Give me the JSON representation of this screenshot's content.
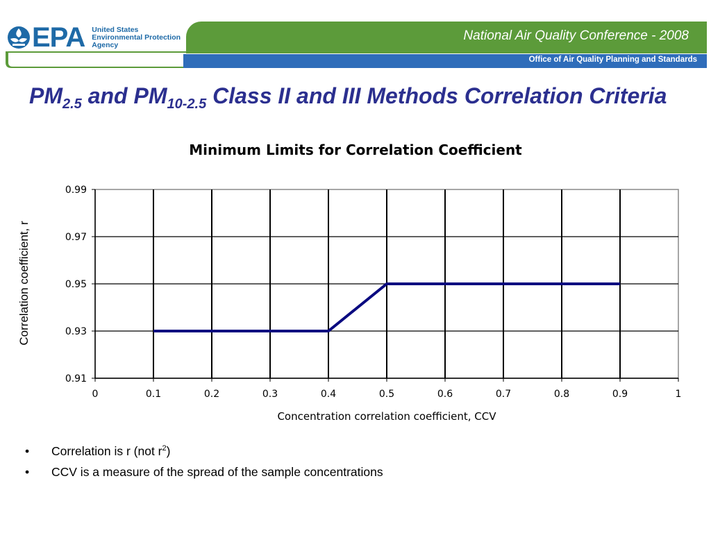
{
  "header": {
    "logo_text": "EPA",
    "logo_sub_1": "United States",
    "logo_sub_2": "Environmental Protection",
    "logo_sub_3": "Agency",
    "conference": "National Air Quality Conference - 2008",
    "office": "Office of Air Quality Planning and Standards",
    "colors": {
      "green": "#5c9b3a",
      "blue": "#2f6dba",
      "logo_blue": "#1e6aa7"
    }
  },
  "title": {
    "pm1": "PM",
    "sub1": "2.5",
    "mid": " and PM",
    "sub2": "10-2.5",
    "rest": " Class II and III Methods Correlation Criteria"
  },
  "chart_data": {
    "type": "line",
    "title": "Minimum Limits for Correlation Coefficient",
    "xlabel": "Concentration correlation coefficient, CCV",
    "ylabel": "Correlation coefficient, r",
    "xlim": [
      0,
      1
    ],
    "ylim": [
      0.91,
      0.99
    ],
    "x_ticks": [
      "0",
      "0.1",
      "0.2",
      "0.3",
      "0.4",
      "0.5",
      "0.6",
      "0.7",
      "0.8",
      "0.9",
      "1"
    ],
    "y_ticks": [
      "0.91",
      "0.93",
      "0.95",
      "0.97",
      "0.99"
    ],
    "grid": true,
    "series": [
      {
        "x": [
          0.1,
          0.4,
          0.5,
          0.9
        ],
        "y": [
          0.93,
          0.93,
          0.95,
          0.95
        ],
        "color": "#0a0a80"
      }
    ]
  },
  "bullets": {
    "b1_text": "Correlation is r (not r",
    "b1_sup": "2",
    "b1_close": ")",
    "b2_text": "CCV is a measure of the spread of the sample concentrations"
  }
}
